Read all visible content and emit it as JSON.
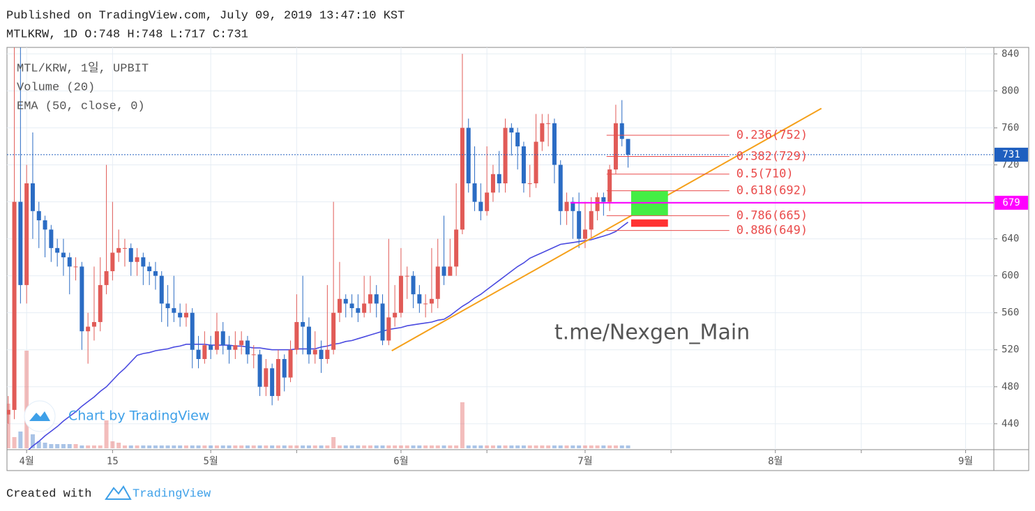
{
  "header": {
    "published": "Published on TradingView.com, July 09, 2019 13:47:10 KST",
    "symbol_line": "MTLKRW, 1D O:748 H:748 L:717 C:731"
  },
  "footer": {
    "created": "Created with",
    "brand": "TradingView"
  },
  "watermark": "t.me/Nexgen_Main",
  "badge": "Chart by TradingView",
  "chart_data": {
    "type": "candlestick",
    "legend": [
      "MTL/KRW, 1일, UPBIT",
      "Volume (20)",
      "EMA (50, close, 0)"
    ],
    "up_color": "#e15b57",
    "down_color": "#2b6cc4",
    "ema_color": "#4a4ae0",
    "candles": {
      "open": [
        450,
        455,
        680,
        590,
        700,
        670,
        660,
        650,
        630,
        625,
        620,
        610,
        610,
        540,
        545,
        550,
        590,
        605,
        625,
        630,
        630,
        615,
        620,
        610,
        605,
        600,
        570,
        565,
        560,
        555,
        560,
        520,
        510,
        525,
        520,
        540,
        525,
        520,
        525,
        530,
        515,
        515,
        480,
        500,
        470,
        510,
        490,
        520,
        550,
        545,
        515,
        520,
        510,
        520,
        560,
        575,
        570,
        565,
        560,
        570,
        580,
        570,
        530,
        555,
        560,
        600,
        600,
        580,
        570,
        570,
        575,
        610,
        600,
        610,
        650,
        760,
        700,
        680,
        670,
        690,
        710,
        700,
        760,
        755,
        740,
        700,
        700,
        745,
        765,
        765,
        720,
        670,
        680,
        670,
        640,
        650,
        670,
        685,
        680,
        715,
        765,
        748
      ],
      "high": [
        470,
        860,
        860,
        720,
        755,
        680,
        665,
        655,
        640,
        640,
        625,
        620,
        615,
        560,
        610,
        620,
        720,
        680,
        650,
        640,
        635,
        630,
        625,
        615,
        615,
        605,
        590,
        600,
        570,
        570,
        565,
        535,
        540,
        535,
        560,
        550,
        535,
        540,
        540,
        535,
        525,
        520,
        510,
        505,
        520,
        515,
        530,
        580,
        600,
        555,
        540,
        530,
        590,
        680,
        615,
        580,
        580,
        580,
        600,
        600,
        590,
        580,
        640,
        590,
        630,
        610,
        605,
        590,
        580,
        630,
        640,
        665,
        640,
        700,
        840,
        770,
        740,
        700,
        740,
        720,
        735,
        770,
        765,
        760,
        745,
        720,
        775,
        775,
        775,
        770,
        725,
        690,
        685,
        690,
        680,
        685,
        690,
        690,
        720,
        785,
        790,
        748
      ],
      "low": [
        440,
        445,
        570,
        570,
        640,
        630,
        620,
        615,
        610,
        600,
        580,
        595,
        520,
        505,
        530,
        540,
        580,
        595,
        615,
        610,
        600,
        600,
        590,
        590,
        585,
        550,
        545,
        550,
        545,
        545,
        500,
        500,
        505,
        510,
        515,
        515,
        505,
        510,
        515,
        505,
        500,
        470,
        470,
        460,
        465,
        475,
        485,
        515,
        515,
        505,
        505,
        495,
        505,
        515,
        550,
        555,
        555,
        550,
        555,
        560,
        555,
        525,
        525,
        545,
        555,
        575,
        565,
        560,
        555,
        560,
        565,
        590,
        600,
        600,
        645,
        690,
        670,
        660,
        665,
        680,
        690,
        690,
        730,
        715,
        690,
        685,
        695,
        735,
        740,
        700,
        655,
        655,
        640,
        630,
        630,
        640,
        660,
        665,
        670,
        710,
        740,
        717
      ],
      "close": [
        455,
        680,
        590,
        700,
        670,
        660,
        650,
        630,
        625,
        620,
        610,
        610,
        540,
        545,
        550,
        590,
        605,
        625,
        630,
        630,
        615,
        620,
        610,
        605,
        600,
        570,
        565,
        560,
        555,
        560,
        520,
        510,
        525,
        520,
        540,
        525,
        520,
        525,
        530,
        515,
        515,
        480,
        500,
        470,
        510,
        490,
        520,
        550,
        545,
        515,
        520,
        510,
        520,
        560,
        575,
        570,
        565,
        560,
        570,
        580,
        570,
        530,
        555,
        560,
        600,
        600,
        580,
        570,
        570,
        575,
        610,
        600,
        610,
        650,
        760,
        700,
        680,
        670,
        690,
        710,
        700,
        760,
        755,
        740,
        700,
        700,
        745,
        765,
        765,
        720,
        670,
        680,
        670,
        640,
        650,
        670,
        685,
        680,
        715,
        765,
        748,
        731
      ]
    },
    "volume": [
      32,
      8,
      12,
      70,
      10,
      5,
      4,
      3,
      3,
      3,
      3,
      3,
      2,
      2,
      2,
      2,
      20,
      5,
      4,
      2,
      2,
      2,
      2,
      2,
      2,
      2,
      2,
      2,
      2,
      2,
      2,
      2,
      2,
      2,
      2,
      2,
      2,
      2,
      2,
      2,
      2,
      2,
      2,
      2,
      2,
      2,
      2,
      2,
      2,
      2,
      2,
      2,
      2,
      8,
      2,
      2,
      2,
      2,
      2,
      2,
      2,
      2,
      2,
      2,
      2,
      2,
      2,
      2,
      2,
      2,
      2,
      2,
      2,
      2,
      33,
      2,
      2,
      2,
      2,
      2,
      2,
      2,
      2,
      2,
      2,
      2,
      2,
      2,
      2,
      2,
      2,
      2,
      2,
      2,
      2,
      2,
      2,
      2,
      2,
      2,
      2,
      2
    ],
    "vlim": [
      0,
      100
    ],
    "ema": [
      null,
      null,
      null,
      410,
      416,
      421,
      427,
      432,
      437,
      443,
      448,
      453,
      459,
      464,
      469,
      475,
      480,
      487,
      494,
      500,
      507,
      514,
      516,
      517,
      519,
      520,
      521,
      523,
      524,
      526,
      526,
      526,
      526,
      525,
      525,
      525,
      525,
      524,
      524,
      523,
      522,
      522,
      521,
      520,
      520,
      520,
      520,
      521,
      521,
      521,
      521,
      523,
      524,
      526,
      527,
      529,
      530,
      532,
      534,
      536,
      538,
      540,
      542,
      543,
      544,
      546,
      547,
      548,
      549,
      550,
      552,
      553,
      557,
      562,
      567,
      571,
      576,
      580,
      585,
      590,
      595,
      600,
      605,
      610,
      614,
      619,
      622,
      625,
      628,
      631,
      634,
      635,
      636,
      637,
      638,
      639,
      641,
      643,
      645,
      648,
      653,
      658
    ],
    "xlim": [
      -0.2,
      160.6
    ],
    "xticks": [
      {
        "value": 3,
        "label": "4월"
      },
      {
        "value": 17,
        "label": "15"
      },
      {
        "value": 33,
        "label": "5월"
      },
      {
        "value": 64,
        "label": "6월"
      },
      {
        "value": 94,
        "label": "7월"
      },
      {
        "value": 125,
        "label": "8월"
      },
      {
        "value": 156,
        "label": "9월"
      }
    ],
    "minor_xticks": [
      47,
      78,
      108,
      139
    ],
    "ylim": [
      412,
      847
    ],
    "yticks": [
      440,
      480,
      520,
      560,
      600,
      640,
      680,
      720,
      760,
      800,
      840
    ],
    "grid": true,
    "trendline": {
      "x": [
        62.5,
        132.5
      ],
      "y": [
        519,
        781
      ],
      "color": "#f5a01a"
    },
    "fib": {
      "x": [
        97.5,
        117.5
      ],
      "color": "#ea4b4b",
      "levels": [
        {
          "value": 752,
          "label": "0.236(752)"
        },
        {
          "value": 729,
          "label": "0.382(729)"
        },
        {
          "value": 710,
          "label": "0.5(710)"
        },
        {
          "value": 692,
          "label": "0.618(692)"
        },
        {
          "value": 665,
          "label": "0.786(665)"
        },
        {
          "value": 649,
          "label": "0.886(649)"
        }
      ]
    },
    "zones": [
      {
        "x": [
          101.5,
          107.5
        ],
        "range": [
          665,
          692
        ],
        "color": "#44ee44"
      },
      {
        "x": [
          101.5,
          107.5
        ],
        "range": [
          653,
          661
        ],
        "color": "#ff3333"
      }
    ],
    "price_lines": [
      {
        "value": 731,
        "color": "#1f5fbf",
        "dashed": true
      },
      {
        "value": 679,
        "color": "#ff00ff",
        "from": 91.6
      }
    ]
  }
}
